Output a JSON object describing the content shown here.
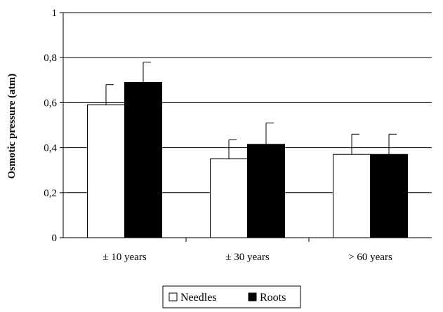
{
  "chart_data": {
    "type": "bar",
    "title": "",
    "xlabel": "",
    "ylabel": "Osmotic pressure (atm)",
    "ylim": [
      0,
      1
    ],
    "yticks": [
      0,
      0.2,
      0.4,
      0.6,
      0.8,
      1
    ],
    "ytick_labels": [
      "0",
      "0,2",
      "0,4",
      "0,6",
      "0,8",
      "1"
    ],
    "categories": [
      "± 10 years",
      "± 30 years",
      "> 60 years"
    ],
    "series": [
      {
        "name": "Needles",
        "color": "#ffffff",
        "values": [
          0.59,
          0.35,
          0.37
        ],
        "errors": [
          0.09,
          0.085,
          0.09
        ]
      },
      {
        "name": "Roots",
        "color": "#000000",
        "values": [
          0.69,
          0.415,
          0.37
        ],
        "errors": [
          0.09,
          0.095,
          0.09
        ]
      }
    ],
    "grid": true,
    "legend_position": "bottom-center"
  }
}
